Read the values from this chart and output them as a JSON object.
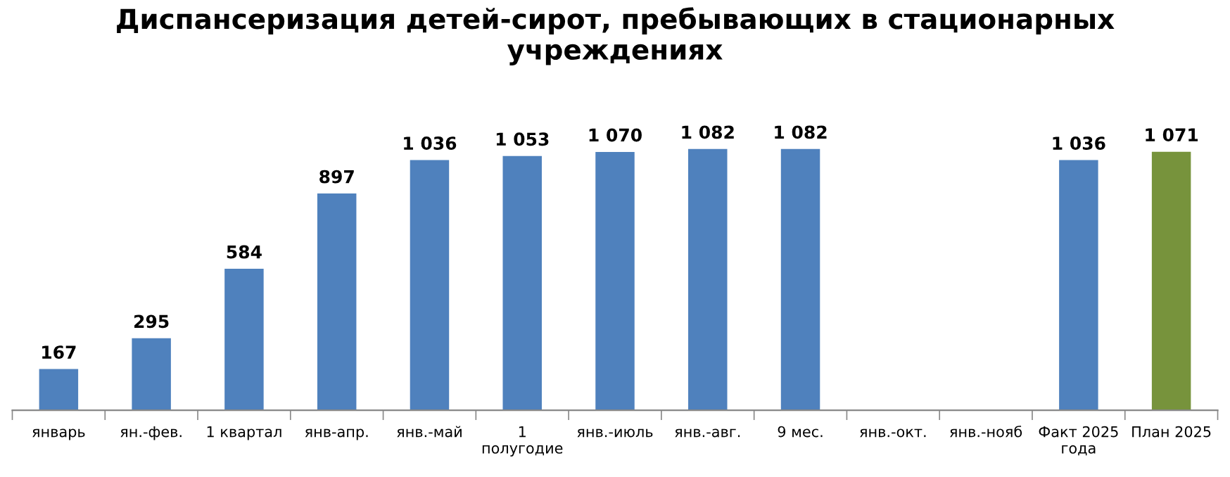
{
  "chart_data": {
    "type": "bar",
    "title": "Диспансеризация детей-сирот, пребывающих в стационарных\nучреждениях",
    "categories": [
      "январь",
      "ян.-фев.",
      "1 квартал",
      "янв-апр.",
      "янв.-май",
      "1\nполугодие",
      "янв.-июль",
      "янв.-авг.",
      "9 мес.",
      "янв.-окт.",
      "янв.-нояб",
      "Факт 2025\nгода",
      "План 2025"
    ],
    "values": [
      167,
      295,
      584,
      897,
      1036,
      1053,
      1070,
      1082,
      1082,
      null,
      null,
      1036,
      1071
    ],
    "value_labels": [
      "167",
      "295",
      "584",
      "897",
      "1 036",
      "1 053",
      "1 070",
      "1 082",
      "1 082",
      null,
      null,
      "1 036",
      "1 071"
    ],
    "colors": [
      "#4f81bd",
      "#4f81bd",
      "#4f81bd",
      "#4f81bd",
      "#4f81bd",
      "#4f81bd",
      "#4f81bd",
      "#4f81bd",
      "#4f81bd",
      "#4f81bd",
      "#4f81bd",
      "#4f81bd",
      "#77933c"
    ],
    "grid": false,
    "legend": false
  }
}
